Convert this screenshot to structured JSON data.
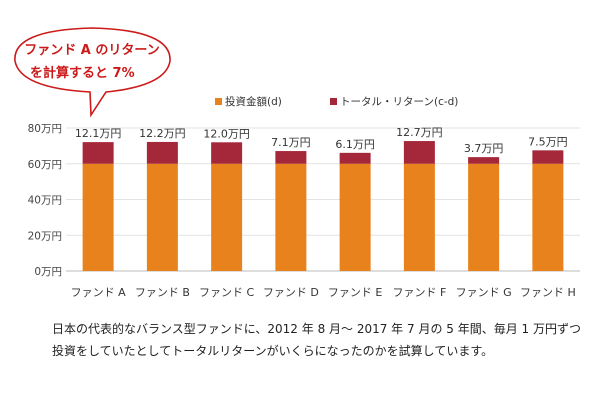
{
  "callout": {
    "line1": "ファンド A のリターン",
    "line2": "を計算すると 7%"
  },
  "caption": {
    "line1": "日本の代表的なバランス型ファンドに、2012 年 8 月～ 2017 年 7 月の 5 年間、毎月 1 万円ずつ",
    "line2": "投資をしていたとしてトータルリターンがいくらになったのかを試算しています。"
  },
  "chart_data": {
    "type": "bar",
    "stacked": true,
    "categories": [
      "ファンド A",
      "ファンド B",
      "ファンド C",
      "ファンド D",
      "ファンド E",
      "ファンド F",
      "ファンド G",
      "ファンド H"
    ],
    "series": [
      {
        "name": "投資金額(d)",
        "color": "#e8821c",
        "values": [
          60,
          60,
          60,
          60,
          60,
          60,
          60,
          60
        ]
      },
      {
        "name": "トータル・リターン(c-d)",
        "color": "#a5273a",
        "values": [
          12.1,
          12.2,
          12.0,
          7.1,
          6.1,
          12.7,
          3.7,
          7.5
        ]
      }
    ],
    "data_labels": [
      "12.1万円",
      "12.2万円",
      "12.0万円",
      "7.1万円",
      "6.1万円",
      "12.7万円",
      "3.7万円",
      "7.5万円"
    ],
    "yticks": [
      {
        "value": 0,
        "label": "0万円"
      },
      {
        "value": 20,
        "label": "20万円"
      },
      {
        "value": 40,
        "label": "40万円"
      },
      {
        "value": 60,
        "label": "60万円"
      },
      {
        "value": 80,
        "label": "80万円"
      }
    ],
    "ylim": [
      0,
      80
    ],
    "grid": true,
    "legend": "top-center"
  },
  "callout_color": "#cc1a1a"
}
